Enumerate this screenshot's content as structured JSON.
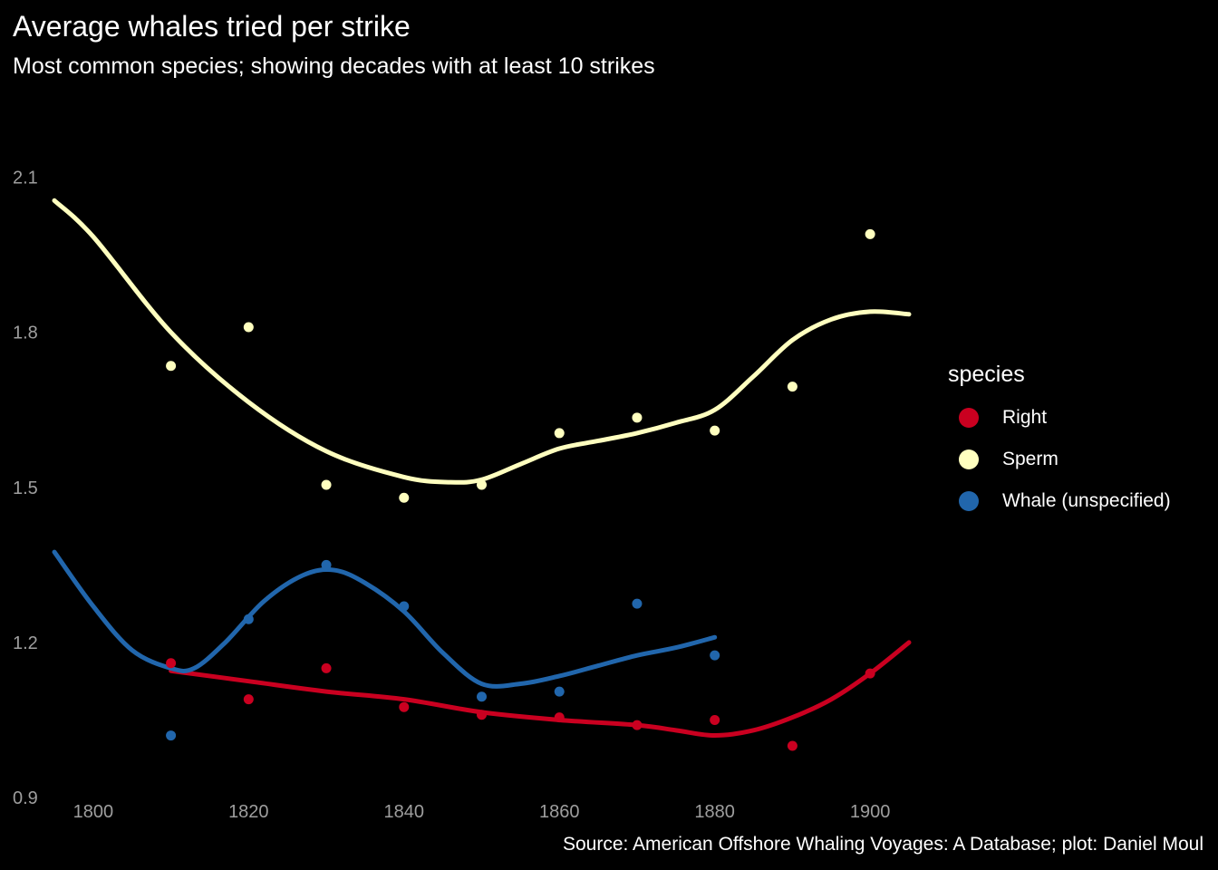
{
  "chart_data": {
    "type": "scatter",
    "title": "Average whales tried per strike",
    "subtitle": "Most common species; showing decades with at least 10 strikes",
    "caption": "Source: American Offshore Whaling Voyages: A Database; plot: Daniel Moul",
    "xlabel": "",
    "ylabel": "",
    "xlim": [
      1795,
      1905
    ],
    "ylim": [
      0.9,
      2.18
    ],
    "x_ticks": [
      1800,
      1820,
      1840,
      1860,
      1880,
      1900
    ],
    "x_tick_labels": [
      "1800",
      "1820",
      "1840",
      "1860",
      "1880",
      "1900"
    ],
    "y_ticks": [
      0.9,
      1.2,
      1.5,
      1.8,
      2.1
    ],
    "y_tick_labels": [
      "0.9",
      "1.2",
      "1.5",
      "1.8",
      "2.1"
    ],
    "grid": false,
    "legend": {
      "title": "species",
      "position": "right"
    },
    "series": [
      {
        "name": "Right",
        "color": "#ca0020",
        "points": [
          {
            "x": 1810,
            "y": 1.16
          },
          {
            "x": 1820,
            "y": 1.09
          },
          {
            "x": 1830,
            "y": 1.15
          },
          {
            "x": 1840,
            "y": 1.075
          },
          {
            "x": 1850,
            "y": 1.06
          },
          {
            "x": 1860,
            "y": 1.055
          },
          {
            "x": 1870,
            "y": 1.04
          },
          {
            "x": 1880,
            "y": 1.05
          },
          {
            "x": 1890,
            "y": 1.0
          },
          {
            "x": 1900,
            "y": 1.14
          }
        ],
        "smooth": [
          {
            "x": 1810,
            "y": 1.145
          },
          {
            "x": 1820,
            "y": 1.125
          },
          {
            "x": 1830,
            "y": 1.105
          },
          {
            "x": 1840,
            "y": 1.09
          },
          {
            "x": 1850,
            "y": 1.065
          },
          {
            "x": 1860,
            "y": 1.05
          },
          {
            "x": 1870,
            "y": 1.04
          },
          {
            "x": 1875,
            "y": 1.03
          },
          {
            "x": 1880,
            "y": 1.02
          },
          {
            "x": 1885,
            "y": 1.03
          },
          {
            "x": 1890,
            "y": 1.055
          },
          {
            "x": 1895,
            "y": 1.09
          },
          {
            "x": 1900,
            "y": 1.14
          },
          {
            "x": 1905,
            "y": 1.2
          }
        ]
      },
      {
        "name": "Sperm",
        "color": "#ffffbf",
        "points": [
          {
            "x": 1810,
            "y": 1.735
          },
          {
            "x": 1820,
            "y": 1.81
          },
          {
            "x": 1830,
            "y": 1.505
          },
          {
            "x": 1840,
            "y": 1.48
          },
          {
            "x": 1850,
            "y": 1.505
          },
          {
            "x": 1860,
            "y": 1.605
          },
          {
            "x": 1870,
            "y": 1.635
          },
          {
            "x": 1880,
            "y": 1.61
          },
          {
            "x": 1890,
            "y": 1.695
          },
          {
            "x": 1900,
            "y": 1.99
          }
        ],
        "smooth": [
          {
            "x": 1795,
            "y": 2.055
          },
          {
            "x": 1800,
            "y": 1.985
          },
          {
            "x": 1810,
            "y": 1.8
          },
          {
            "x": 1820,
            "y": 1.665
          },
          {
            "x": 1830,
            "y": 1.57
          },
          {
            "x": 1840,
            "y": 1.52
          },
          {
            "x": 1846,
            "y": 1.51
          },
          {
            "x": 1850,
            "y": 1.515
          },
          {
            "x": 1855,
            "y": 1.545
          },
          {
            "x": 1860,
            "y": 1.575
          },
          {
            "x": 1865,
            "y": 1.59
          },
          {
            "x": 1870,
            "y": 1.605
          },
          {
            "x": 1875,
            "y": 1.625
          },
          {
            "x": 1880,
            "y": 1.65
          },
          {
            "x": 1885,
            "y": 1.715
          },
          {
            "x": 1890,
            "y": 1.785
          },
          {
            "x": 1895,
            "y": 1.825
          },
          {
            "x": 1900,
            "y": 1.84
          },
          {
            "x": 1905,
            "y": 1.835
          }
        ]
      },
      {
        "name": "Whale (unspecified)",
        "color": "#2166ac",
        "points": [
          {
            "x": 1810,
            "y": 1.02
          },
          {
            "x": 1820,
            "y": 1.245
          },
          {
            "x": 1830,
            "y": 1.35
          },
          {
            "x": 1840,
            "y": 1.27
          },
          {
            "x": 1850,
            "y": 1.095
          },
          {
            "x": 1860,
            "y": 1.105
          },
          {
            "x": 1870,
            "y": 1.275
          },
          {
            "x": 1880,
            "y": 1.175
          }
        ],
        "smooth": [
          {
            "x": 1795,
            "y": 1.375
          },
          {
            "x": 1800,
            "y": 1.27
          },
          {
            "x": 1805,
            "y": 1.185
          },
          {
            "x": 1810,
            "y": 1.15
          },
          {
            "x": 1813,
            "y": 1.15
          },
          {
            "x": 1817,
            "y": 1.2
          },
          {
            "x": 1822,
            "y": 1.28
          },
          {
            "x": 1827,
            "y": 1.33
          },
          {
            "x": 1831,
            "y": 1.34
          },
          {
            "x": 1835,
            "y": 1.315
          },
          {
            "x": 1840,
            "y": 1.26
          },
          {
            "x": 1845,
            "y": 1.18
          },
          {
            "x": 1850,
            "y": 1.12
          },
          {
            "x": 1855,
            "y": 1.12
          },
          {
            "x": 1860,
            "y": 1.135
          },
          {
            "x": 1865,
            "y": 1.155
          },
          {
            "x": 1870,
            "y": 1.175
          },
          {
            "x": 1875,
            "y": 1.19
          },
          {
            "x": 1880,
            "y": 1.21
          }
        ]
      }
    ]
  }
}
